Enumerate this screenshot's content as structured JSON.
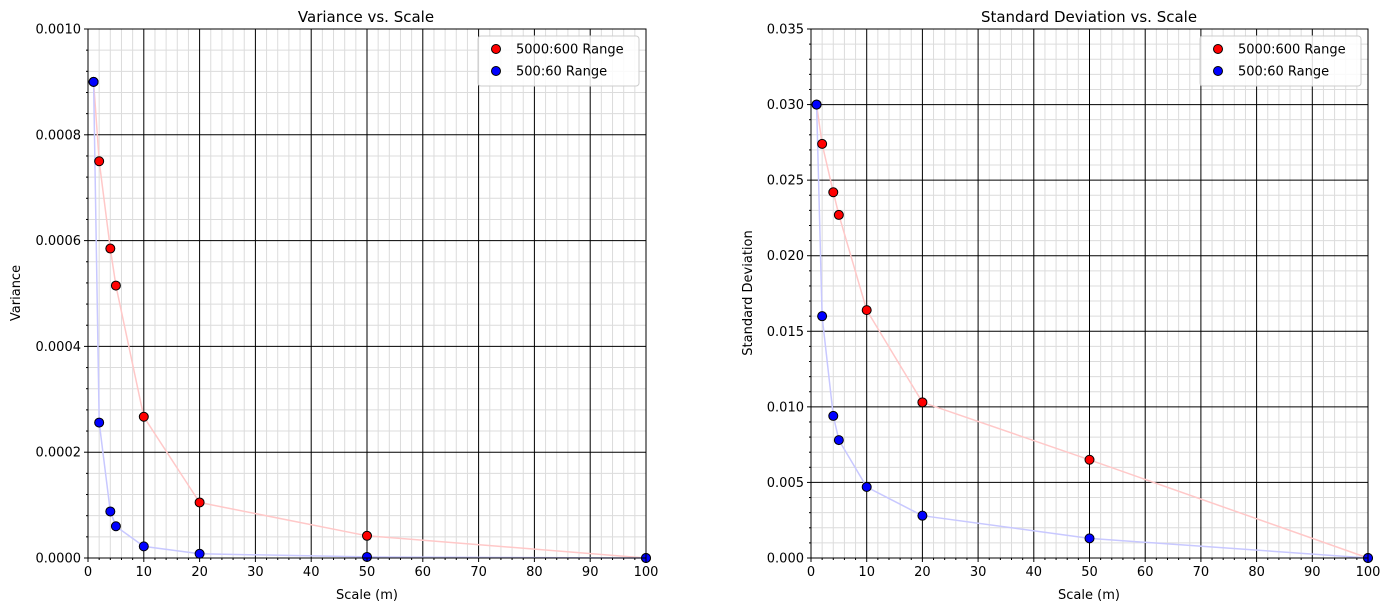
{
  "chart_data": [
    {
      "type": "scatter",
      "title": "Variance vs. Scale",
      "xlabel": "Scale (m)",
      "ylabel": "Variance",
      "xlim": [
        0,
        100
      ],
      "ylim": [
        0,
        0.001
      ],
      "x_ticks": [
        "0",
        "10",
        "20",
        "30",
        "40",
        "50",
        "60",
        "70",
        "80",
        "90",
        "100"
      ],
      "y_ticks": [
        "0.0000",
        "0.0002",
        "0.0004",
        "0.0006",
        "0.0008",
        "0.0010"
      ],
      "grid": true,
      "legend_position": "top-right",
      "series": [
        {
          "name": "5000:600 Range",
          "color": "#ff0000",
          "line_color": "#ffc8c8",
          "x": [
            1,
            2,
            4,
            5,
            10,
            20,
            50,
            100
          ],
          "y": [
            0.0009,
            0.00075,
            0.000585,
            0.000515,
            0.000267,
            0.000105,
            4.2e-05,
            0.0
          ]
        },
        {
          "name": "500:60 Range",
          "color": "#0000ff",
          "line_color": "#c8c8ff",
          "x": [
            1,
            2,
            4,
            5,
            10,
            20,
            50,
            100
          ],
          "y": [
            0.0009,
            0.000256,
            8.8e-05,
            6e-05,
            2.2e-05,
            8e-06,
            2e-06,
            0.0
          ]
        }
      ]
    },
    {
      "type": "scatter",
      "title": "Standard Deviation vs. Scale",
      "xlabel": "Scale (m)",
      "ylabel": "Standard Deviation",
      "xlim": [
        0,
        100
      ],
      "ylim": [
        0,
        0.035
      ],
      "x_ticks": [
        "0",
        "10",
        "20",
        "30",
        "40",
        "50",
        "60",
        "70",
        "80",
        "90",
        "100"
      ],
      "y_ticks": [
        "0.000",
        "0.005",
        "0.010",
        "0.015",
        "0.020",
        "0.025",
        "0.030",
        "0.035"
      ],
      "grid": true,
      "legend_position": "top-right",
      "series": [
        {
          "name": "5000:600 Range",
          "color": "#ff0000",
          "line_color": "#ffc8c8",
          "x": [
            1,
            2,
            4,
            5,
            10,
            20,
            50,
            100
          ],
          "y": [
            0.03,
            0.0274,
            0.0242,
            0.0227,
            0.0164,
            0.0103,
            0.0065,
            0.0
          ]
        },
        {
          "name": "500:60 Range",
          "color": "#0000ff",
          "line_color": "#c8c8ff",
          "x": [
            1,
            2,
            4,
            5,
            10,
            20,
            50,
            100
          ],
          "y": [
            0.03,
            0.016,
            0.0094,
            0.0078,
            0.0047,
            0.0028,
            0.0013,
            0.0
          ]
        }
      ]
    }
  ]
}
